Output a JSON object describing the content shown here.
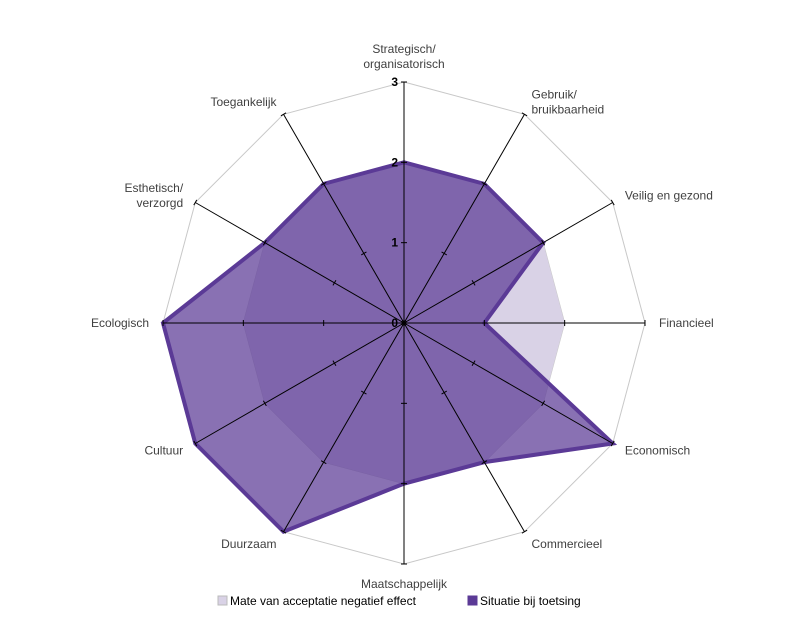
{
  "chart_data": {
    "type": "radar",
    "categories": [
      "Strategisch/\norganisatorisch",
      "Gebruik/\nbruikbaarheid",
      "Veilig en gezond",
      "Financieel",
      "Economisch",
      "Commercieel",
      "Maatschappelijk",
      "Duurzaam",
      "Cultuur",
      "Ecologisch",
      "Esthetisch/\nverzorgd",
      "Toegankelijk"
    ],
    "series": [
      {
        "name": "Mate van acceptatie negatief effect",
        "color": "#d9d2e6",
        "values": [
          2,
          2,
          2,
          2,
          2,
          2,
          2,
          2,
          2,
          2,
          2,
          2
        ]
      },
      {
        "name": "Situatie bij toetsing",
        "color": "#5b3a96",
        "values": [
          2,
          2,
          2,
          1,
          3,
          2,
          2,
          3,
          3,
          3,
          2,
          2
        ]
      }
    ],
    "ylim": [
      0,
      3
    ],
    "yticks": [
      0,
      1,
      2,
      3
    ],
    "grid": true,
    "legend": "bottom"
  }
}
